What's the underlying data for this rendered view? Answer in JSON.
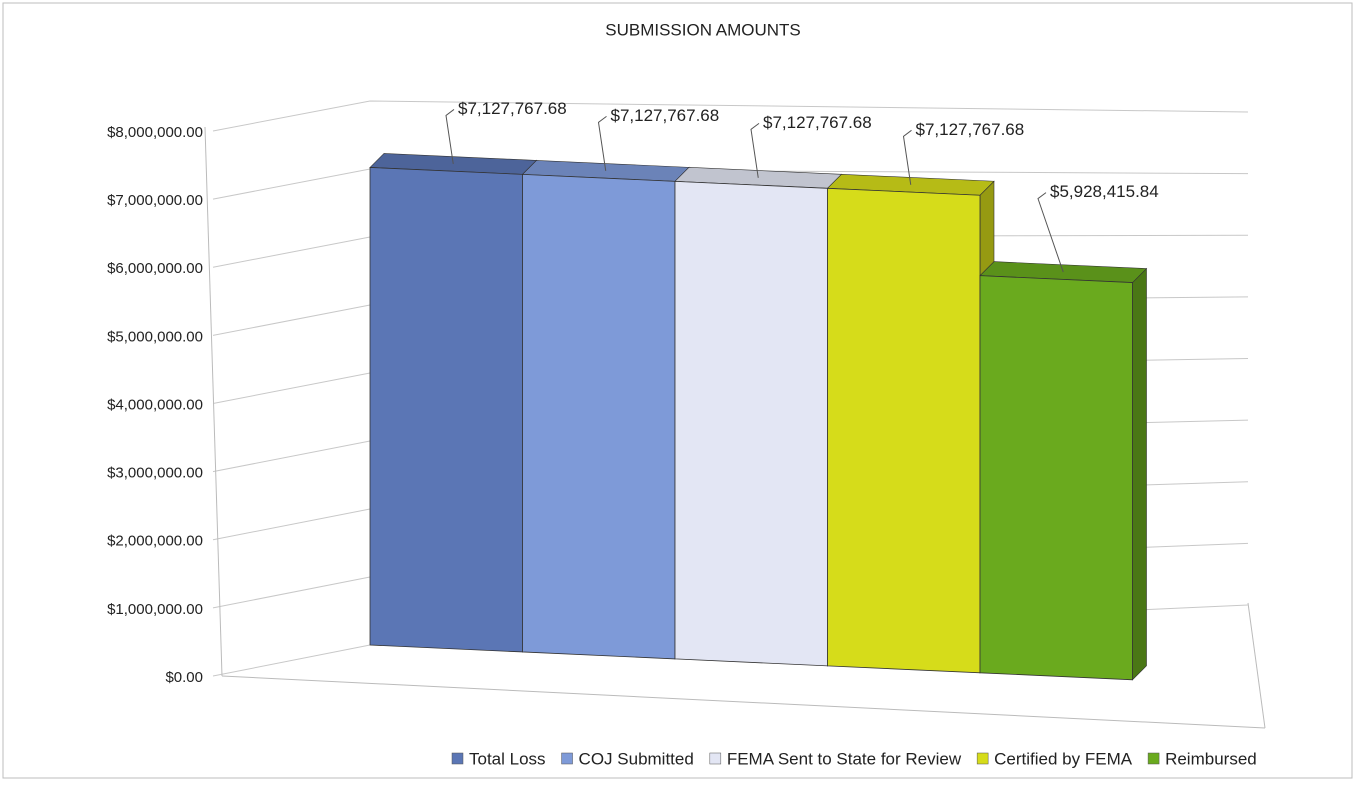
{
  "chart_data": {
    "type": "bar3d",
    "title": "SUBMISSION AMOUNTS",
    "series": [
      {
        "name": "Total Loss",
        "color": "#5b76b5",
        "values": [
          7127767.68
        ],
        "value_labels": [
          "$7,127,767.68"
        ]
      },
      {
        "name": "COJ Submitted",
        "color": "#7e9ad8",
        "values": [
          7127767.68
        ],
        "value_labels": [
          "$7,127,767.68"
        ]
      },
      {
        "name": "FEMA Sent to State for Review",
        "color": "#e3e6f4",
        "values": [
          7127767.68
        ],
        "value_labels": [
          "$7,127,767.68"
        ]
      },
      {
        "name": "Certified by FEMA",
        "color": "#d6dc1a",
        "values": [
          7127767.68
        ],
        "value_labels": [
          "$7,127,767.68"
        ]
      },
      {
        "name": "Reimbursed",
        "color": "#6aaa1e",
        "values": [
          5928415.84
        ],
        "value_labels": [
          "$5,928,415.84"
        ]
      }
    ],
    "ylim": [
      0,
      8000000
    ],
    "yticks": [
      {
        "value": 0,
        "label": "$0.00"
      },
      {
        "value": 1000000,
        "label": "$1,000,000.00"
      },
      {
        "value": 2000000,
        "label": "$2,000,000.00"
      },
      {
        "value": 3000000,
        "label": "$3,000,000.00"
      },
      {
        "value": 4000000,
        "label": "$4,000,000.00"
      },
      {
        "value": 5000000,
        "label": "$5,000,000.00"
      },
      {
        "value": 6000000,
        "label": "$6,000,000.00"
      },
      {
        "value": 7000000,
        "label": "$7,000,000.00"
      },
      {
        "value": 8000000,
        "label": "$8,000,000.00"
      }
    ],
    "grid": true,
    "legend": "bottom"
  }
}
